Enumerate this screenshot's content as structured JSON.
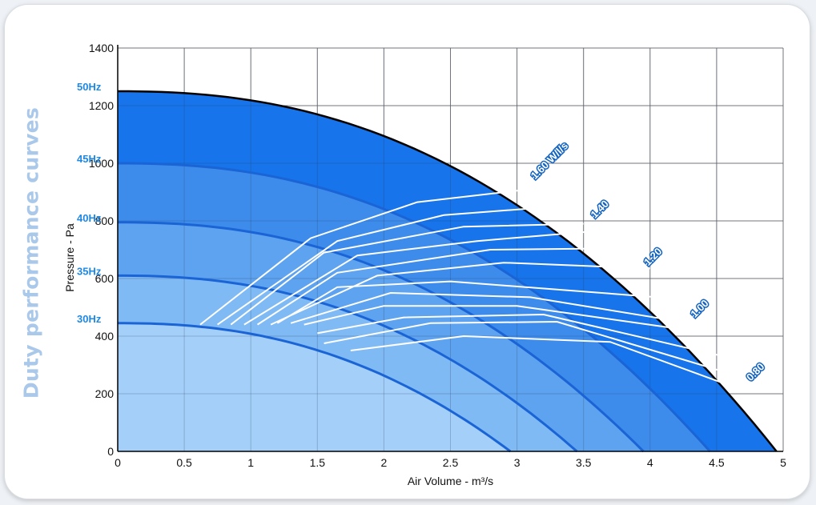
{
  "side_title": "Duty performance curves",
  "chart_data": {
    "type": "line",
    "xlabel": "Air Volume - m³/s",
    "ylabel": "Pressure - Pa",
    "xlim": [
      0,
      5
    ],
    "ylim": [
      0,
      1400
    ],
    "x_ticks": [
      "0",
      "0.5",
      "1",
      "1.5",
      "2",
      "2.5",
      "3",
      "3.5",
      "4",
      "4.5",
      "5"
    ],
    "y_ticks": [
      "0",
      "200",
      "400",
      "600",
      "800",
      "1000",
      "1200",
      "1400"
    ],
    "grid": true,
    "speed_curves": [
      {
        "name": "30Hz",
        "max_volume": 2.95,
        "max_pressure": 445,
        "label": "30Hz"
      },
      {
        "name": "35Hz",
        "max_volume": 3.45,
        "max_pressure": 610,
        "label": "35Hz"
      },
      {
        "name": "40Hz",
        "max_volume": 3.95,
        "max_pressure": 795,
        "label": "40Hz"
      },
      {
        "name": "45Hz",
        "max_volume": 4.45,
        "max_pressure": 1000,
        "label": "45Hz"
      },
      {
        "name": "50Hz",
        "max_volume": 4.95,
        "max_pressure": 1250,
        "label": "50Hz"
      }
    ],
    "efficiency_lines": [
      [
        [
          0.62,
          440
        ],
        [
          1.45,
          740
        ],
        [
          2.25,
          865
        ],
        [
          3.1,
          910
        ]
      ],
      [
        [
          0.75,
          440
        ],
        [
          1.65,
          730
        ],
        [
          2.45,
          820
        ],
        [
          3.3,
          850
        ]
      ],
      [
        [
          0.85,
          440
        ],
        [
          1.55,
          690
        ],
        [
          2.6,
          780
        ],
        [
          3.5,
          790
        ]
      ],
      [
        [
          0.95,
          440
        ],
        [
          1.8,
          680
        ],
        [
          2.7,
          730
        ],
        [
          3.6,
          765
        ]
      ],
      [
        [
          1.05,
          440
        ],
        [
          1.65,
          620
        ],
        [
          2.8,
          700
        ],
        [
          3.8,
          705
        ]
      ],
      [
        [
          1.15,
          440
        ],
        [
          1.95,
          610
        ],
        [
          2.9,
          655
        ],
        [
          4.0,
          635
        ]
      ],
      [
        [
          1.2,
          445
        ],
        [
          1.65,
          570
        ],
        [
          2.5,
          590
        ],
        [
          4.2,
          530
        ]
      ],
      [
        [
          1.3,
          445
        ],
        [
          2.05,
          550
        ],
        [
          3.1,
          535
        ],
        [
          4.3,
          445
        ]
      ],
      [
        [
          1.4,
          440
        ],
        [
          2.0,
          505
        ],
        [
          3.0,
          505
        ],
        [
          4.45,
          410
        ]
      ],
      [
        [
          1.5,
          410
        ],
        [
          2.15,
          465
        ],
        [
          3.2,
          475
        ],
        [
          4.55,
          330
        ]
      ],
      [
        [
          1.55,
          375
        ],
        [
          2.35,
          445
        ],
        [
          3.3,
          450
        ],
        [
          4.6,
          270
        ]
      ],
      [
        [
          1.75,
          350
        ],
        [
          2.6,
          400
        ],
        [
          3.7,
          380
        ],
        [
          4.65,
          220
        ]
      ]
    ],
    "efficiency_labels": [
      {
        "text": "1.60 W/l/s",
        "x": 3.1,
        "y": 920
      },
      {
        "text": "1.40",
        "x": 3.55,
        "y": 785
      },
      {
        "text": "1.20",
        "x": 3.95,
        "y": 620
      },
      {
        "text": "1.00",
        "x": 4.3,
        "y": 440
      },
      {
        "text": "0.80",
        "x": 4.72,
        "y": 220
      }
    ],
    "colors": {
      "band_50": "#1774ea",
      "band_45": "#3d8cec",
      "band_40": "#5ea3ef",
      "band_35": "#7fbaf4",
      "band_30": "#a4cff8",
      "curve_line": "#1a64d6",
      "outer_line": "#000000",
      "grid": "#888888",
      "efficiency_line": "#ffffff"
    }
  }
}
